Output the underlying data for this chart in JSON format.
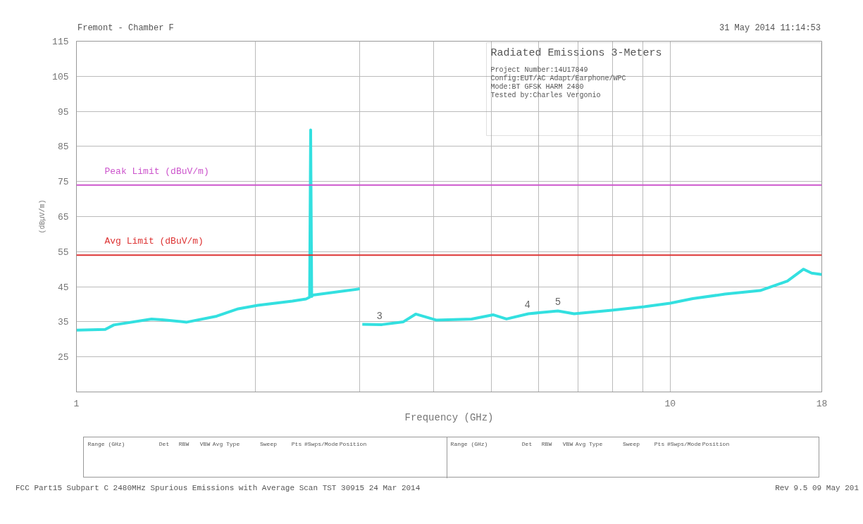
{
  "chart_data": {
    "type": "line",
    "title": "Radiated Emissions 3-Meters",
    "xlabel": "Frequency (GHz)",
    "ylabel": "(dBµV/m)",
    "log": "x",
    "xlim": [
      1,
      18
    ],
    "ylim": [
      15,
      115
    ],
    "xticks": [
      1,
      {
        "value": 2,
        "label": null
      },
      {
        "value": 3,
        "label": null
      },
      {
        "value": 4,
        "label": null
      },
      {
        "value": 5,
        "label": null
      },
      {
        "value": 6,
        "label": null
      },
      {
        "value": 7,
        "label": null
      },
      {
        "value": 8,
        "label": null
      },
      {
        "value": 9,
        "label": null
      },
      10,
      18
    ],
    "yticks": [
      25,
      35,
      45,
      55,
      65,
      75,
      85,
      95,
      105,
      115
    ],
    "grid": true,
    "marker": "none",
    "line_style": "solid",
    "series": [
      {
        "color": "#33e0e0",
        "x": [
          1,
          1.118,
          1.156,
          1.338,
          1.395,
          1.534,
          1.722,
          1.873,
          2.02,
          2.311,
          2.436,
          2.47,
          2.48,
          2.49,
          2.5,
          3.0,
          null,
          3.03,
          3.27,
          3.553,
          3.727,
          4.034,
          4.63,
          5.03,
          5.3,
          5.77,
          6.47,
          6.89,
          7.97,
          9.04,
          10.0,
          10.91,
          12.37,
          14.17,
          15.75,
          16.77,
          17.3,
          18
        ],
        "values": [
          32.6,
          32.8,
          34.1,
          35.8,
          35.6,
          34.9,
          36.6,
          38.7,
          39.7,
          40.9,
          41.5,
          42.0,
          89.7,
          42.2,
          42.6,
          44.4,
          null,
          34.3,
          34.2,
          35.0,
          37.2,
          35.5,
          35.8,
          37.0,
          35.8,
          37.3,
          38.1,
          37.3,
          38.3,
          39.3,
          40.3,
          41.6,
          42.9,
          43.9,
          46.6,
          50.0,
          48.9,
          48.5
        ]
      }
    ],
    "ref_lines": [
      {
        "axis": "y",
        "value": 74,
        "label": "Peak Limit (dBuV/m)",
        "color": "#cc55cc"
      },
      {
        "axis": "y",
        "value": 54,
        "label": "Avg Limit (dBuV/m)",
        "color": "#dd3333"
      }
    ],
    "annotations": [
      "Fremont - Chamber F",
      "31 May 2014   11:14:53",
      "Project Number:14U17849",
      "Config:EUT/AC Adapt/Earphone/WPC",
      "Mode:BT GFSK HARM 2480",
      "Tested by:Charles Vergonio",
      "FCC Part15 Subpart C 2480MHz Spurious Emissions with Average Scan TST 30915 24 Mar 2014",
      "Rev 9.5 09 May 201",
      {
        "text": "3",
        "x": 3.24,
        "y": 34.2
      },
      {
        "text": "4",
        "x": 5.75,
        "y": 37.3
      },
      {
        "text": "5",
        "x": 6.47,
        "y": 38.1
      },
      "Range (GHz)",
      "Det",
      "RBW",
      "VBW",
      "Avg Type",
      "Sweep",
      "Pts",
      "#Swps/Mode",
      "Position",
      "Range (GHz)",
      "Det",
      "RBW",
      "VBW",
      "Avg Type",
      "Sweep",
      "Pts",
      "#Swps/Mode",
      "Position"
    ]
  }
}
